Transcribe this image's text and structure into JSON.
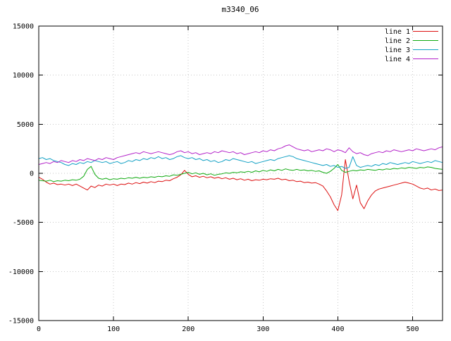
{
  "chart_data": {
    "type": "line",
    "title": "m3340_06",
    "xlabel": "",
    "ylabel": "",
    "xlim": [
      0,
      540
    ],
    "ylim": [
      -15000,
      15000
    ],
    "xticks": [
      0,
      100,
      200,
      300,
      400,
      500
    ],
    "yticks": [
      -15000,
      -10000,
      -5000,
      0,
      5000,
      10000,
      15000
    ],
    "grid": true,
    "legend_position": "top-right",
    "x": [
      0,
      5,
      10,
      15,
      20,
      25,
      30,
      35,
      40,
      45,
      50,
      55,
      60,
      65,
      70,
      75,
      80,
      85,
      90,
      95,
      100,
      105,
      110,
      115,
      120,
      125,
      130,
      135,
      140,
      145,
      150,
      155,
      160,
      165,
      170,
      175,
      180,
      185,
      190,
      195,
      200,
      205,
      210,
      215,
      220,
      225,
      230,
      235,
      240,
      245,
      250,
      255,
      260,
      265,
      270,
      275,
      280,
      285,
      290,
      295,
      300,
      305,
      310,
      315,
      320,
      325,
      330,
      335,
      340,
      345,
      350,
      355,
      360,
      365,
      370,
      375,
      380,
      385,
      390,
      395,
      400,
      405,
      410,
      415,
      420,
      425,
      430,
      435,
      440,
      445,
      450,
      455,
      460,
      465,
      470,
      475,
      480,
      485,
      490,
      495,
      500,
      505,
      510,
      515,
      520,
      525,
      530,
      535,
      540
    ],
    "series": [
      {
        "name": "line 1",
        "color": "#dd1111",
        "values": [
          -400,
          -600,
          -900,
          -1100,
          -1000,
          -1150,
          -1100,
          -1200,
          -1100,
          -1250,
          -1100,
          -1300,
          -1500,
          -1700,
          -1300,
          -1450,
          -1200,
          -1300,
          -1100,
          -1200,
          -1100,
          -1250,
          -1100,
          -1150,
          -1000,
          -1100,
          -950,
          -1050,
          -900,
          -1000,
          -850,
          -950,
          -800,
          -850,
          -700,
          -750,
          -550,
          -400,
          -150,
          300,
          -100,
          -350,
          -250,
          -400,
          -300,
          -450,
          -350,
          -500,
          -400,
          -550,
          -450,
          -600,
          -500,
          -650,
          -550,
          -700,
          -600,
          -750,
          -650,
          -700,
          -600,
          -650,
          -550,
          -600,
          -500,
          -650,
          -600,
          -750,
          -700,
          -850,
          -800,
          -950,
          -900,
          -1000,
          -950,
          -1100,
          -1300,
          -1800,
          -2400,
          -3200,
          -3800,
          -2200,
          1400,
          -800,
          -2600,
          -1200,
          -3000,
          -3600,
          -2800,
          -2200,
          -1800,
          -1600,
          -1500,
          -1400,
          -1300,
          -1200,
          -1100,
          -1000,
          -900,
          -1000,
          -1100,
          -1300,
          -1500,
          -1600,
          -1500,
          -1700,
          -1600,
          -1750,
          -1700
        ]
      },
      {
        "name": "line 2",
        "color": "#11aa11",
        "values": [
          -700,
          -750,
          -800,
          -700,
          -850,
          -750,
          -800,
          -700,
          -750,
          -650,
          -700,
          -600,
          -300,
          400,
          700,
          -100,
          -500,
          -600,
          -500,
          -650,
          -550,
          -600,
          -500,
          -550,
          -450,
          -500,
          -400,
          -500,
          -400,
          -450,
          -350,
          -400,
          -300,
          -350,
          -250,
          -300,
          -150,
          -200,
          -100,
          0,
          100,
          -50,
          50,
          -100,
          0,
          -150,
          -50,
          -200,
          -100,
          -50,
          50,
          0,
          100,
          50,
          150,
          100,
          200,
          100,
          250,
          150,
          300,
          200,
          350,
          250,
          400,
          300,
          450,
          350,
          300,
          400,
          300,
          350,
          250,
          300,
          200,
          250,
          100,
          0,
          200,
          500,
          900,
          300,
          100,
          200,
          300,
          250,
          350,
          300,
          400,
          350,
          300,
          400,
          350,
          450,
          400,
          500,
          450,
          550,
          500,
          600,
          550,
          500,
          600,
          550,
          650,
          600,
          500,
          450,
          400
        ]
      },
      {
        "name": "line 3",
        "color": "#11a0c4",
        "values": [
          1500,
          1600,
          1400,
          1500,
          1300,
          1200,
          1100,
          900,
          800,
          1000,
          900,
          1100,
          1000,
          1200,
          1100,
          1300,
          1200,
          1100,
          1200,
          1000,
          1100,
          1200,
          1000,
          1100,
          1300,
          1200,
          1400,
          1300,
          1500,
          1400,
          1600,
          1500,
          1700,
          1500,
          1600,
          1400,
          1500,
          1700,
          1800,
          1600,
          1500,
          1600,
          1400,
          1500,
          1300,
          1400,
          1200,
          1300,
          1100,
          1200,
          1400,
          1300,
          1500,
          1400,
          1300,
          1200,
          1100,
          1200,
          1000,
          1100,
          1200,
          1300,
          1400,
          1300,
          1500,
          1600,
          1700,
          1800,
          1700,
          1500,
          1400,
          1300,
          1200,
          1100,
          1000,
          900,
          800,
          900,
          700,
          800,
          600,
          700,
          500,
          600,
          1700,
          800,
          600,
          700,
          800,
          700,
          900,
          800,
          1000,
          900,
          1100,
          1000,
          900,
          1000,
          1100,
          1000,
          1200,
          1100,
          1000,
          1100,
          1200,
          1100,
          1300,
          1200,
          1100
        ]
      },
      {
        "name": "line 4",
        "color": "#b322c9",
        "values": [
          900,
          1000,
          1100,
          1000,
          1200,
          1100,
          1300,
          1200,
          1100,
          1300,
          1200,
          1400,
          1300,
          1500,
          1400,
          1300,
          1500,
          1400,
          1600,
          1500,
          1400,
          1600,
          1700,
          1800,
          1900,
          2000,
          2100,
          2000,
          2200,
          2100,
          2000,
          2100,
          2200,
          2100,
          2000,
          1900,
          2000,
          2200,
          2300,
          2100,
          2200,
          2000,
          2100,
          1900,
          2000,
          2100,
          2000,
          2200,
          2100,
          2300,
          2200,
          2100,
          2200,
          2000,
          2100,
          1900,
          2000,
          2100,
          2200,
          2100,
          2300,
          2200,
          2400,
          2300,
          2500,
          2600,
          2800,
          2900,
          2700,
          2500,
          2400,
          2300,
          2400,
          2200,
          2300,
          2400,
          2300,
          2500,
          2400,
          2200,
          2400,
          2300,
          2100,
          2600,
          2200,
          2000,
          2100,
          1900,
          1800,
          2000,
          2100,
          2200,
          2100,
          2300,
          2200,
          2400,
          2300,
          2200,
          2300,
          2400,
          2300,
          2500,
          2400,
          2300,
          2400,
          2500,
          2400,
          2600,
          2700
        ]
      }
    ]
  },
  "style": {
    "background": "#ffffff",
    "axis_color": "#000000",
    "grid_color": "#c8c8c8"
  }
}
